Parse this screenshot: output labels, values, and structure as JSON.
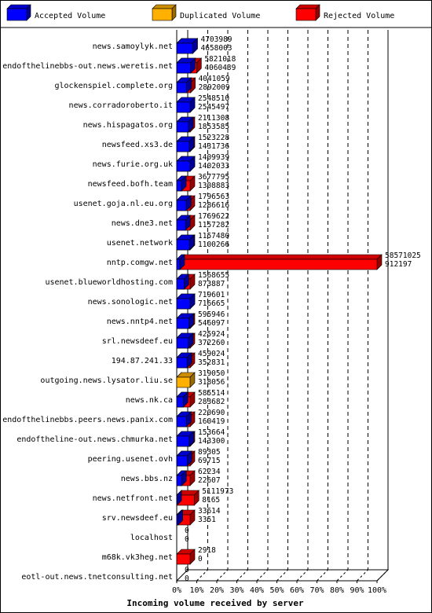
{
  "chart_data": {
    "type": "bar",
    "orientation": "horizontal",
    "stacked_3d": true,
    "xlabel": "Incoming volume received by server",
    "xlim": [
      0,
      100
    ],
    "x_ticks": [
      "0%",
      "10%",
      "20%",
      "30%",
      "40%",
      "50%",
      "60%",
      "70%",
      "80%",
      "90%",
      "100%"
    ],
    "grid": true,
    "legend_position": "top",
    "series": [
      {
        "name": "Accepted Volume",
        "color": "#0000ff"
      },
      {
        "name": "Duplicated Volume",
        "color": "#ffb000"
      },
      {
        "name": "Rejected Volume",
        "color": "#ff0000"
      }
    ],
    "rows": [
      {
        "server": "news.samoylyk.net",
        "total": "4703989",
        "accepted": "4658003",
        "duplicated": 0
      },
      {
        "server": "endofthelinebbs-out.news.weretis.net",
        "total": "5821018",
        "accepted": "4060439",
        "duplicated": 0
      },
      {
        "server": "glockenspiel.complete.org",
        "total": "4041059",
        "accepted": "2892009",
        "duplicated": 0
      },
      {
        "server": "news.corradoroberto.it",
        "total": "2548510",
        "accepted": "2545497",
        "duplicated": 0
      },
      {
        "server": "news.hispagatos.org",
        "total": "2111308",
        "accepted": "1853585",
        "duplicated": 0
      },
      {
        "server": "newsfeed.xs3.de",
        "total": "1523228",
        "accepted": "1431736",
        "duplicated": 0
      },
      {
        "server": "news.furie.org.uk",
        "total": "1409939",
        "accepted": "1402033",
        "duplicated": 0
      },
      {
        "server": "newsfeed.bofh.team",
        "total": "3677795",
        "accepted": "1308883",
        "duplicated": 0
      },
      {
        "server": "usenet.goja.nl.eu.org",
        "total": "1796563",
        "accepted": "1286616",
        "duplicated": 0
      },
      {
        "server": "news.dne3.net",
        "total": "1769622",
        "accepted": "1157282",
        "duplicated": 0
      },
      {
        "server": "usenet.network",
        "total": "1157480",
        "accepted": "1100266",
        "duplicated": 0
      },
      {
        "server": "nntp.comgw.net",
        "total": "58571025",
        "accepted": "912197",
        "duplicated": 0
      },
      {
        "server": "usenet.blueworldhosting.com",
        "total": "1568655",
        "accepted": "873887",
        "duplicated": 0
      },
      {
        "server": "news.sonologic.net",
        "total": "719601",
        "accepted": "716665",
        "duplicated": 0
      },
      {
        "server": "news.nntp4.net",
        "total": "595946",
        "accepted": "546097",
        "duplicated": 0
      },
      {
        "server": "srl.newsdeef.eu",
        "total": "425924",
        "accepted": "372260",
        "duplicated": 0
      },
      {
        "server": "194.87.241.33",
        "total": "459024",
        "accepted": "352831",
        "duplicated": 0
      },
      {
        "server": "outgoing.news.lysator.liu.se",
        "total": "319050",
        "accepted": "318056",
        "duplicated": 318056
      },
      {
        "server": "news.nk.ca",
        "total": "585514",
        "accepted": "283682",
        "duplicated": 0
      },
      {
        "server": "endofthelinebbs.peers.news.panix.com",
        "total": "220690",
        "accepted": "160419",
        "duplicated": 0
      },
      {
        "server": "endoftheline-out.news.chmurka.net",
        "total": "153664",
        "accepted": "143300",
        "duplicated": 0
      },
      {
        "server": "peering.usenet.ovh",
        "total": "89305",
        "accepted": "69715",
        "duplicated": 0
      },
      {
        "server": "news.bbs.nz",
        "total": "62234",
        "accepted": "22607",
        "duplicated": 0
      },
      {
        "server": "news.netfront.net",
        "total": "5111973",
        "accepted": "8165",
        "duplicated": 0
      },
      {
        "server": "srv.newsdeef.eu",
        "total": "33614",
        "accepted": "3351",
        "duplicated": 0
      },
      {
        "server": "localhost",
        "total": "0",
        "accepted": "0",
        "duplicated": 0
      },
      {
        "server": "m68k.vk3heg.net",
        "total": "2918",
        "accepted": "0",
        "duplicated": 0
      },
      {
        "server": "eotl-out.news.tnetconsulting.net",
        "total": "0",
        "accepted": "0",
        "duplicated": 0
      }
    ]
  }
}
